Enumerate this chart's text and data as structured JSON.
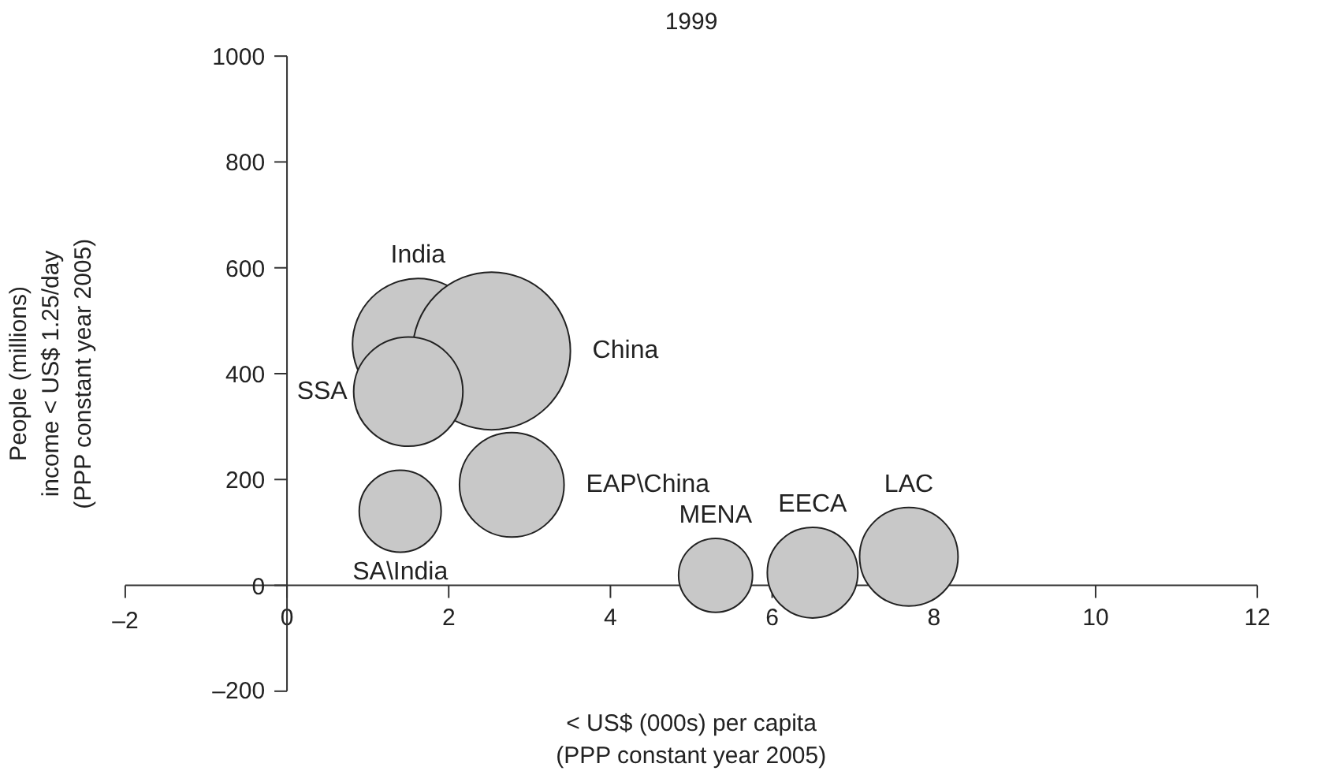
{
  "chart_data": {
    "type": "bubble",
    "title": "1999",
    "xlabel": "< US$ (000s) per capita\n(PPP constant year 2005)",
    "ylabel": "People (millions)\nincome < US$ 1.25/day\n(PPP constant year 2005)",
    "xlim": [
      -2,
      12
    ],
    "xticks": [
      {
        "value": -2,
        "label": "–2"
      },
      0,
      2,
      4,
      6,
      8,
      10,
      12
    ],
    "ylim": [
      -200,
      1000
    ],
    "yticks": [
      {
        "value": -200,
        "label": "–200"
      },
      0,
      200,
      400,
      600,
      800,
      1000
    ],
    "grid": false,
    "legend": false,
    "series": [
      {
        "name": "India",
        "color": "#c8c8c8",
        "x": [
          1.62
        ],
        "values": [
          456
        ],
        "sizes": [
          0.69
        ]
      },
      {
        "name": "China",
        "color": "#c8c8c8",
        "x": [
          2.53
        ],
        "values": [
          443
        ],
        "sizes": [
          1
        ]
      },
      {
        "name": "SSA",
        "color": "#c8c8c8",
        "x": [
          1.5
        ],
        "values": [
          366
        ],
        "sizes": [
          0.48
        ]
      },
      {
        "name": "SA\\India",
        "color": "#c8c8c8",
        "x": [
          1.4
        ],
        "values": [
          140
        ],
        "sizes": [
          0.27
        ]
      },
      {
        "name": "EAP\\China",
        "color": "#c8c8c8",
        "x": [
          2.78
        ],
        "values": [
          190
        ],
        "sizes": [
          0.44
        ]
      },
      {
        "name": "MENA",
        "color": "#c8c8c8",
        "x": [
          5.3
        ],
        "values": [
          19
        ],
        "sizes": [
          0.22
        ]
      },
      {
        "name": "EECA",
        "color": "#c8c8c8",
        "x": [
          6.5
        ],
        "values": [
          24
        ],
        "sizes": [
          0.33
        ]
      },
      {
        "name": "LAC",
        "color": "#c8c8c8",
        "x": [
          7.69
        ],
        "values": [
          54
        ],
        "sizes": [
          0.39
        ]
      }
    ]
  }
}
